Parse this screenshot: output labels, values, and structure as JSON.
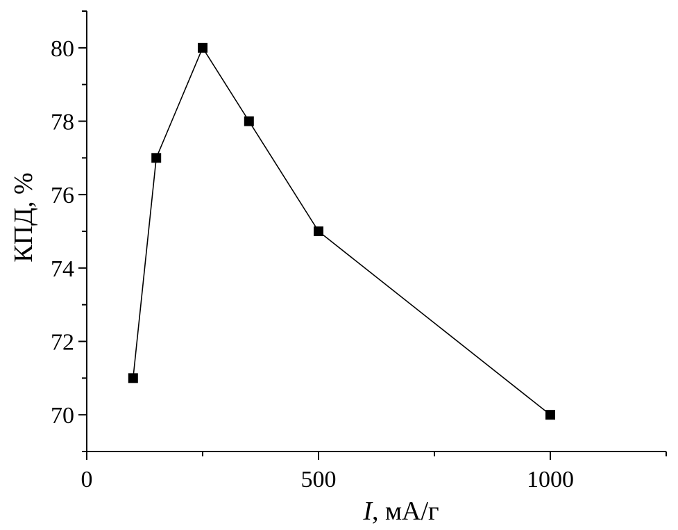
{
  "chart_data": {
    "type": "line",
    "title": "",
    "xlabel_var": "I",
    "xlabel_unit": ", мА/г",
    "ylabel": "КПД, %",
    "xlim": [
      0,
      1250
    ],
    "ylim": [
      69,
      81
    ],
    "x_ticks": [
      0,
      500,
      1000
    ],
    "x_tick_labels": [
      "0",
      "500",
      "1000"
    ],
    "x_minor_ticks": [
      250,
      750,
      1250
    ],
    "y_ticks": [
      70,
      72,
      74,
      76,
      78,
      80
    ],
    "y_tick_labels": [
      "70",
      "72",
      "74",
      "76",
      "78",
      "80"
    ],
    "y_minor_ticks": [
      69,
      71,
      73,
      75,
      77,
      79,
      81
    ],
    "grid": false,
    "legend": "none",
    "marker": "square",
    "color": "#000000",
    "series": [
      {
        "x": [
          100,
          150,
          250,
          350,
          500,
          1000
        ],
        "y": [
          71,
          77,
          80,
          78,
          75,
          70
        ]
      }
    ]
  }
}
